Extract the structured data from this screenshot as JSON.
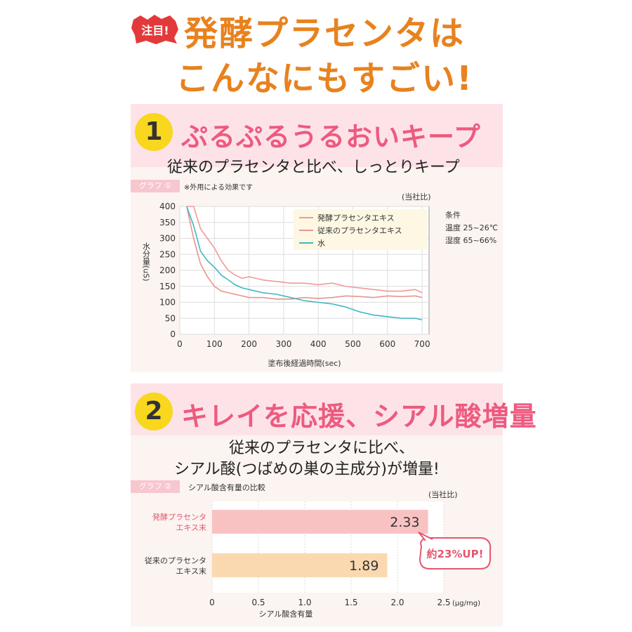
{
  "header": {
    "badge": "注目!",
    "title_line1": "発酵プラセンタは",
    "title_line2": "こんなにもすごい!"
  },
  "section1": {
    "number": "1",
    "heading": "ぷるぷるうるおいキープ",
    "subheading": "従来のプラセンタと比べ、しっとりキープ",
    "graph_tag": "グラフ ①",
    "graph_note": "※外用による効果です",
    "company_note": "(当社比)",
    "conditions": [
      "条件",
      "温度 25~26℃",
      "湿度 65~66%"
    ]
  },
  "section2": {
    "number": "2",
    "heading": "キレイを応援、シアル酸増量",
    "subheading_line1": "従来のプラセンタに比べ、",
    "subheading_line2": "シアル酸(つばめの巣の主成分)が増量!",
    "graph_tag": "グラフ ②",
    "graph_title": "シアル酸含有量の比較",
    "company_note": "(当社比)",
    "callout": "約23%UP!"
  },
  "colors": {
    "orange_title": "#e8821e",
    "pink_heading": "#ee5a7f",
    "fermented": "#f09a9a",
    "conventional": "#e8948c",
    "water": "#3fb8c4",
    "bar_fermented": "#f9c2c2",
    "bar_conventional": "#fbd9b0"
  },
  "chart_data": [
    {
      "type": "line",
      "title": "",
      "xlabel": "塗布後経過時間(sec)",
      "ylabel": "水分量(uS)",
      "xlim": [
        0,
        720
      ],
      "ylim": [
        0,
        400
      ],
      "xticks": [
        0,
        100,
        200,
        300,
        400,
        500,
        600,
        700
      ],
      "yticks": [
        0,
        50,
        100,
        150,
        200,
        250,
        300,
        350,
        400
      ],
      "grid": true,
      "legend": "top-center",
      "series": [
        {
          "name": "発酵プラセンタエキス",
          "color": "#f09a9a",
          "x": [
            20,
            40,
            60,
            80,
            100,
            120,
            140,
            160,
            180,
            200,
            240,
            280,
            320,
            360,
            400,
            440,
            480,
            520,
            560,
            600,
            640,
            680,
            700
          ],
          "y": [
            400,
            400,
            330,
            300,
            270,
            230,
            200,
            185,
            175,
            180,
            170,
            165,
            160,
            160,
            155,
            160,
            150,
            145,
            140,
            135,
            135,
            140,
            130
          ]
        },
        {
          "name": "従来のプラセンタエキス",
          "color": "#e8948c",
          "x": [
            20,
            40,
            60,
            80,
            100,
            120,
            140,
            160,
            180,
            200,
            240,
            280,
            320,
            360,
            400,
            440,
            480,
            520,
            560,
            600,
            640,
            680,
            700
          ],
          "y": [
            400,
            300,
            220,
            180,
            150,
            135,
            130,
            125,
            120,
            115,
            115,
            110,
            110,
            115,
            112,
            115,
            120,
            118,
            115,
            120,
            118,
            120,
            115
          ]
        },
        {
          "name": "水",
          "color": "#3fb8c4",
          "x": [
            20,
            40,
            60,
            80,
            100,
            120,
            140,
            160,
            180,
            200,
            240,
            280,
            320,
            360,
            400,
            440,
            480,
            520,
            560,
            600,
            640,
            680,
            700
          ],
          "y": [
            400,
            340,
            260,
            230,
            210,
            185,
            170,
            155,
            145,
            140,
            130,
            125,
            115,
            105,
            100,
            95,
            85,
            70,
            60,
            55,
            50,
            50,
            45
          ]
        }
      ]
    },
    {
      "type": "bar",
      "orientation": "horizontal",
      "categories": [
        "発酵プラセンタエキス末",
        "従来のプラセンタエキス末"
      ],
      "category_lines": [
        [
          "発酵プラセンタ",
          "エキス末"
        ],
        [
          "従来のプラセンタ",
          "エキス末"
        ]
      ],
      "values": [
        2.33,
        1.89
      ],
      "value_labels": [
        "2.33",
        "1.89"
      ],
      "xlabel": "シアル酸含有量",
      "unit": "(μg/mg)",
      "xlim": [
        0,
        2.5
      ],
      "xticks": [
        "0",
        "0.5",
        "1.0",
        "1.5",
        "2.0",
        "2.5"
      ],
      "grid": true
    }
  ]
}
